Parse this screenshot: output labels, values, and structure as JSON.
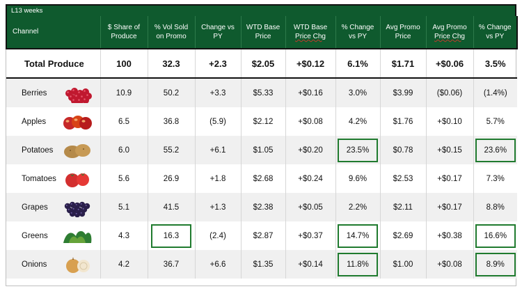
{
  "period_label": "L13 weeks",
  "headers": [
    [
      "Channel"
    ],
    [
      "$ Share of",
      "Produce"
    ],
    [
      "% Vol Sold",
      "on Promo"
    ],
    [
      "Change  vs",
      "PY"
    ],
    [
      "WTD Base",
      "Price"
    ],
    [
      "WTD Base",
      "Price Chg"
    ],
    [
      "% Change",
      "vs PY"
    ],
    [
      "Avg Promo",
      "Price"
    ],
    [
      "Avg Promo",
      "Price Chg"
    ],
    [
      "% Change",
      "vs PY"
    ]
  ],
  "total": {
    "name": "Total Produce",
    "values": [
      "100",
      "32.3",
      "+2.3",
      "$2.05",
      "+$0.12",
      "6.1%",
      "$1.71",
      "+$0.06",
      "3.5%"
    ]
  },
  "rows": [
    {
      "name": "Berries",
      "icon": "raspberries-icon",
      "values": [
        "10.9",
        "50.2",
        "+3.3",
        "$5.33",
        "+$0.16",
        "3.0%",
        "$3.99",
        "($0.06)",
        "(1.4%)"
      ],
      "highlight": []
    },
    {
      "name": "Apples",
      "icon": "apples-icon",
      "values": [
        "6.5",
        "36.8",
        "(5.9)",
        "$2.12",
        "+$0.08",
        "4.2%",
        "$1.76",
        "+$0.10",
        "5.7%"
      ],
      "highlight": []
    },
    {
      "name": "Potatoes",
      "icon": "potatoes-icon",
      "values": [
        "6.0",
        "55.2",
        "+6.1",
        "$1.05",
        "+$0.20",
        "23.5%",
        "$0.78",
        "+$0.15",
        "23.6%"
      ],
      "highlight": [
        5,
        8
      ]
    },
    {
      "name": "Tomatoes",
      "icon": "tomatoes-icon",
      "values": [
        "5.6",
        "26.9",
        "+1.8",
        "$2.68",
        "+$0.24",
        "9.6%",
        "$2.53",
        "+$0.17",
        "7.3%"
      ],
      "highlight": []
    },
    {
      "name": "Grapes",
      "icon": "grapes-icon",
      "values": [
        "5.1",
        "41.5",
        "+1.3",
        "$2.38",
        "+$0.05",
        "2.2%",
        "$2.11",
        "+$0.17",
        "8.8%"
      ],
      "highlight": []
    },
    {
      "name": "Greens",
      "icon": "greens-icon",
      "values": [
        "4.3",
        "16.3",
        "(2.4)",
        "$2.87",
        "+$0.37",
        "14.7%",
        "$2.69",
        "+$0.38",
        "16.6%"
      ],
      "highlight": [
        1,
        5,
        8
      ]
    },
    {
      "name": "Onions",
      "icon": "onions-icon",
      "values": [
        "4.2",
        "36.7",
        "+6.6",
        "$1.35",
        "+$0.14",
        "11.8%",
        "$1.00",
        "+$0.08",
        "8.9%"
      ],
      "highlight": [
        5,
        8
      ]
    }
  ],
  "colors": {
    "header_green": "#0f5a2e",
    "highlight_box": "#1f7a2e"
  }
}
